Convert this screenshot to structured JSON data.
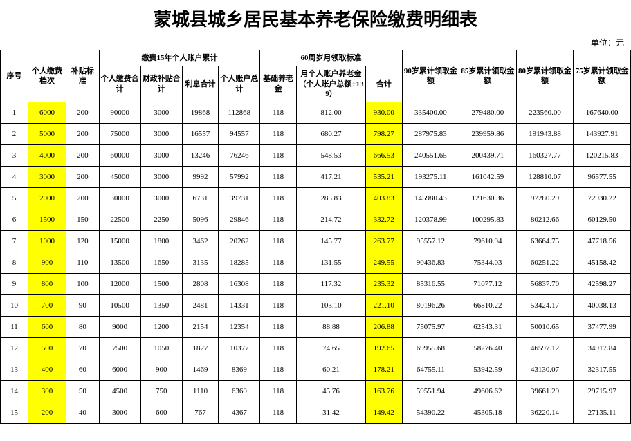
{
  "title": "蒙城县城乡居民基本养老保险缴费明细表",
  "unit": "单位：元",
  "headers": {
    "seq": "序号",
    "level": "个人缴费档次",
    "subsidy": "补贴标准",
    "group15": "缴费15年个人账户累计",
    "g15_personal": "个人缴费合计",
    "g15_fiscal": "财政补贴合计",
    "g15_interest": "利息合计",
    "g15_total": "个人账户总计",
    "group60": "60周岁月领取标准",
    "g60_base": "基础养老金",
    "g60_monthly": "月个人账户养老金（个人账户总额÷139）",
    "g60_total": "合计",
    "s90": "90岁累计领取金额",
    "s85": "85岁累计领取金额",
    "s80": "80岁累计领取金额",
    "s75": "75岁累计领取金额"
  },
  "rows": [
    {
      "seq": 1,
      "level": 6000,
      "subsidy": 200,
      "g15p": 90000,
      "g15f": 3000,
      "g15i": 19868,
      "g15t": 112868,
      "g60b": 118,
      "g60m": "812.00",
      "g60t": "930.00",
      "s90": "335400.00",
      "s85": "279480.00",
      "s80": "223560.00",
      "s75": "167640.00"
    },
    {
      "seq": 2,
      "level": 5000,
      "subsidy": 200,
      "g15p": 75000,
      "g15f": 3000,
      "g15i": 16557,
      "g15t": 94557,
      "g60b": 118,
      "g60m": "680.27",
      "g60t": "798.27",
      "s90": "287975.83",
      "s85": "239959.86",
      "s80": "191943.88",
      "s75": "143927.91"
    },
    {
      "seq": 3,
      "level": 4000,
      "subsidy": 200,
      "g15p": 60000,
      "g15f": 3000,
      "g15i": 13246,
      "g15t": 76246,
      "g60b": 118,
      "g60m": "548.53",
      "g60t": "666.53",
      "s90": "240551.65",
      "s85": "200439.71",
      "s80": "160327.77",
      "s75": "120215.83"
    },
    {
      "seq": 4,
      "level": 3000,
      "subsidy": 200,
      "g15p": 45000,
      "g15f": 3000,
      "g15i": 9992,
      "g15t": 57992,
      "g60b": 118,
      "g60m": "417.21",
      "g60t": "535.21",
      "s90": "193275.11",
      "s85": "161042.59",
      "s80": "128810.07",
      "s75": "96577.55"
    },
    {
      "seq": 5,
      "level": 2000,
      "subsidy": 200,
      "g15p": 30000,
      "g15f": 3000,
      "g15i": 6731,
      "g15t": 39731,
      "g60b": 118,
      "g60m": "285.83",
      "g60t": "403.83",
      "s90": "145980.43",
      "s85": "121630.36",
      "s80": "97280.29",
      "s75": "72930.22"
    },
    {
      "seq": 6,
      "level": 1500,
      "subsidy": 150,
      "g15p": 22500,
      "g15f": 2250,
      "g15i": 5096,
      "g15t": 29846,
      "g60b": 118,
      "g60m": "214.72",
      "g60t": "332.72",
      "s90": "120378.99",
      "s85": "100295.83",
      "s80": "80212.66",
      "s75": "60129.50"
    },
    {
      "seq": 7,
      "level": 1000,
      "subsidy": 120,
      "g15p": 15000,
      "g15f": 1800,
      "g15i": 3462,
      "g15t": 20262,
      "g60b": 118,
      "g60m": "145.77",
      "g60t": "263.77",
      "s90": "95557.12",
      "s85": "79610.94",
      "s80": "63664.75",
      "s75": "47718.56"
    },
    {
      "seq": 8,
      "level": 900,
      "subsidy": 110,
      "g15p": 13500,
      "g15f": 1650,
      "g15i": 3135,
      "g15t": 18285,
      "g60b": 118,
      "g60m": "131.55",
      "g60t": "249.55",
      "s90": "90436.83",
      "s85": "75344.03",
      "s80": "60251.22",
      "s75": "45158.42"
    },
    {
      "seq": 9,
      "level": 800,
      "subsidy": 100,
      "g15p": 12000,
      "g15f": 1500,
      "g15i": 2808,
      "g15t": 16308,
      "g60b": 118,
      "g60m": "117.32",
      "g60t": "235.32",
      "s90": "85316.55",
      "s85": "71077.12",
      "s80": "56837.70",
      "s75": "42598.27"
    },
    {
      "seq": 10,
      "level": 700,
      "subsidy": 90,
      "g15p": 10500,
      "g15f": 1350,
      "g15i": 2481,
      "g15t": 14331,
      "g60b": 118,
      "g60m": "103.10",
      "g60t": "221.10",
      "s90": "80196.26",
      "s85": "66810.22",
      "s80": "53424.17",
      "s75": "40038.13"
    },
    {
      "seq": 11,
      "level": 600,
      "subsidy": 80,
      "g15p": 9000,
      "g15f": 1200,
      "g15i": 2154,
      "g15t": 12354,
      "g60b": 118,
      "g60m": "88.88",
      "g60t": "206.88",
      "s90": "75075.97",
      "s85": "62543.31",
      "s80": "50010.65",
      "s75": "37477.99"
    },
    {
      "seq": 12,
      "level": 500,
      "subsidy": 70,
      "g15p": 7500,
      "g15f": 1050,
      "g15i": 1827,
      "g15t": 10377,
      "g60b": 118,
      "g60m": "74.65",
      "g60t": "192.65",
      "s90": "69955.68",
      "s85": "58276.40",
      "s80": "46597.12",
      "s75": "34917.84"
    },
    {
      "seq": 13,
      "level": 400,
      "subsidy": 60,
      "g15p": 6000,
      "g15f": 900,
      "g15i": 1469,
      "g15t": 8369,
      "g60b": 118,
      "g60m": "60.21",
      "g60t": "178.21",
      "s90": "64755.11",
      "s85": "53942.59",
      "s80": "43130.07",
      "s75": "32317.55"
    },
    {
      "seq": 14,
      "level": 300,
      "subsidy": 50,
      "g15p": 4500,
      "g15f": 750,
      "g15i": 1110,
      "g15t": 6360,
      "g60b": 118,
      "g60m": "45.76",
      "g60t": "163.76",
      "s90": "59551.94",
      "s85": "49606.62",
      "s80": "39661.29",
      "s75": "29715.97"
    },
    {
      "seq": 15,
      "level": 200,
      "subsidy": 40,
      "g15p": 3000,
      "g15f": 600,
      "g15i": 767,
      "g15t": 4367,
      "g60b": 118,
      "g60m": "31.42",
      "g60t": "149.42",
      "s90": "54390.22",
      "s85": "45305.18",
      "s80": "36220.14",
      "s75": "27135.11"
    }
  ]
}
